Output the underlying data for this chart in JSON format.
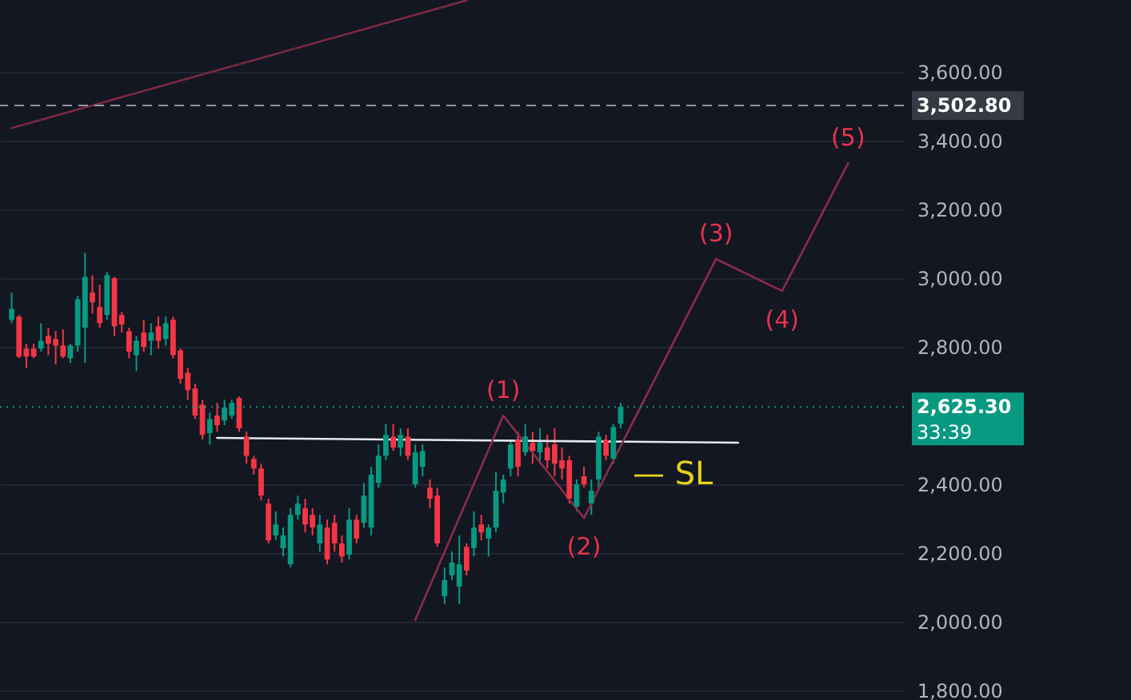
{
  "chart_data": {
    "type": "candlestick",
    "categories": [
      null,
      null,
      null,
      null,
      null,
      null,
      null,
      null,
      null,
      null,
      null,
      null,
      null,
      null,
      null,
      null,
      null,
      null,
      null,
      null,
      null,
      null,
      null,
      null,
      null,
      null,
      null,
      null,
      null,
      null,
      null,
      null,
      null,
      null,
      null,
      null,
      null,
      null,
      null,
      null,
      null,
      null,
      null,
      null,
      null,
      null,
      null,
      null,
      null,
      null,
      null,
      null,
      null,
      null,
      null,
      null,
      null,
      null,
      null,
      null,
      null,
      null,
      null,
      null,
      null,
      null,
      null,
      null,
      null,
      null,
      null,
      null,
      null,
      null,
      null,
      null,
      null,
      null,
      null,
      null,
      null,
      null,
      null,
      null,
      null,
      null,
      null,
      null,
      null,
      null,
      null,
      null,
      null,
      null,
      null,
      null,
      null,
      null,
      null,
      null,
      null,
      null,
      null,
      null,
      null,
      null,
      null,
      null,
      null,
      null,
      null,
      null,
      null,
      null,
      null,
      null,
      null,
      null,
      null,
      null,
      null
    ],
    "ohlc": [
      [
        2879,
        2958,
        2869,
        2911
      ],
      [
        2888,
        2893,
        2767,
        2772
      ],
      [
        2795,
        2809,
        2739,
        2772
      ],
      [
        2795,
        2809,
        2767,
        2772
      ],
      [
        2795,
        2869,
        2786,
        2818
      ],
      [
        2832,
        2856,
        2776,
        2809
      ],
      [
        2823,
        2846,
        2749,
        2804
      ],
      [
        2804,
        2851,
        2767,
        2772
      ],
      [
        2767,
        2809,
        2753,
        2804
      ],
      [
        2804,
        2949,
        2786,
        2939
      ],
      [
        2856,
        3074,
        2753,
        3004
      ],
      [
        2958,
        3009,
        2897,
        2930
      ],
      [
        2916,
        2981,
        2856,
        2869
      ],
      [
        2893,
        3018,
        2879,
        3009
      ],
      [
        3000,
        3004,
        2832,
        2860
      ],
      [
        2893,
        2902,
        2842,
        2865
      ],
      [
        2846,
        2856,
        2767,
        2786
      ],
      [
        2776,
        2832,
        2730,
        2818
      ],
      [
        2842,
        2879,
        2786,
        2800
      ],
      [
        2818,
        2869,
        2776,
        2842
      ],
      [
        2860,
        2888,
        2795,
        2818
      ],
      [
        2823,
        2888,
        2804,
        2869
      ],
      [
        2879,
        2888,
        2767,
        2776
      ],
      [
        2790,
        2795,
        2693,
        2707
      ],
      [
        2725,
        2739,
        2646,
        2674
      ],
      [
        2679,
        2693,
        2590,
        2600
      ],
      [
        2632,
        2646,
        2530,
        2544
      ],
      [
        2549,
        2609,
        2516,
        2590
      ],
      [
        2600,
        2637,
        2553,
        2572
      ],
      [
        2586,
        2646,
        2572,
        2623
      ],
      [
        2600,
        2646,
        2590,
        2637
      ],
      [
        2651,
        2656,
        2553,
        2563
      ],
      [
        2539,
        2553,
        2460,
        2483
      ],
      [
        2474,
        2483,
        2428,
        2446
      ],
      [
        2446,
        2460,
        2353,
        2367
      ],
      [
        2344,
        2358,
        2228,
        2237
      ],
      [
        2251,
        2321,
        2237,
        2283
      ],
      [
        2214,
        2274,
        2190,
        2251
      ],
      [
        2167,
        2330,
        2158,
        2311
      ],
      [
        2311,
        2367,
        2297,
        2344
      ],
      [
        2330,
        2358,
        2260,
        2283
      ],
      [
        2311,
        2330,
        2251,
        2274
      ],
      [
        2228,
        2311,
        2204,
        2283
      ],
      [
        2274,
        2297,
        2167,
        2181
      ],
      [
        2288,
        2311,
        2204,
        2228
      ],
      [
        2228,
        2251,
        2172,
        2190
      ],
      [
        2195,
        2330,
        2181,
        2297
      ],
      [
        2297,
        2311,
        2228,
        2242
      ],
      [
        2288,
        2404,
        2274,
        2367
      ],
      [
        2274,
        2451,
        2251,
        2428
      ],
      [
        2404,
        2516,
        2390,
        2483
      ],
      [
        2483,
        2576,
        2470,
        2544
      ],
      [
        2539,
        2576,
        2497,
        2507
      ],
      [
        2507,
        2563,
        2483,
        2544
      ],
      [
        2539,
        2563,
        2470,
        2483
      ],
      [
        2400,
        2516,
        2390,
        2493
      ],
      [
        2451,
        2516,
        2423,
        2497
      ],
      [
        2390,
        2414,
        2330,
        2358
      ],
      [
        2367,
        2390,
        2218,
        2228
      ],
      [
        2074,
        2158,
        2051,
        2121
      ],
      [
        2135,
        2204,
        2121,
        2172
      ],
      [
        2102,
        2251,
        2051,
        2167
      ],
      [
        2218,
        2228,
        2135,
        2149
      ],
      [
        2214,
        2321,
        2190,
        2274
      ],
      [
        2283,
        2311,
        2237,
        2260
      ],
      [
        2242,
        2283,
        2190,
        2274
      ],
      [
        2274,
        2437,
        2260,
        2381
      ],
      [
        2376,
        2428,
        2344,
        2414
      ],
      [
        2446,
        2530,
        2423,
        2516
      ],
      [
        2530,
        2553,
        2423,
        2451
      ],
      [
        2493,
        2576,
        2483,
        2539
      ],
      [
        2521,
        2553,
        2460,
        2497
      ],
      [
        2493,
        2563,
        2460,
        2521
      ],
      [
        2507,
        2544,
        2446,
        2470
      ],
      [
        2516,
        2563,
        2423,
        2460
      ],
      [
        2470,
        2507,
        2414,
        2446
      ],
      [
        2470,
        2483,
        2344,
        2358
      ],
      [
        2335,
        2414,
        2321,
        2400
      ],
      [
        2423,
        2451,
        2390,
        2400
      ],
      [
        2344,
        2414,
        2311,
        2381
      ],
      [
        2414,
        2553,
        2390,
        2539
      ],
      [
        2530,
        2544,
        2470,
        2483
      ],
      [
        2474,
        2576,
        2460,
        2567
      ],
      [
        2576,
        2637,
        2563,
        2625.3
      ],
      null,
      null,
      null,
      null,
      null,
      null,
      null,
      null,
      null,
      null,
      null,
      null,
      null,
      null,
      null,
      null,
      null,
      null,
      null,
      null,
      null,
      null,
      null,
      null,
      null,
      null,
      null,
      null,
      null,
      null,
      null,
      null,
      null,
      null,
      null,
      null,
      null
    ],
    "series": [
      {
        "type": "line",
        "color": "#7a2a40",
        "values": [
          3437,
          null,
          null,
          null,
          null,
          null,
          null,
          null,
          null,
          null,
          null,
          null,
          null,
          null,
          null,
          null,
          null,
          null,
          null,
          null,
          null,
          null,
          null,
          null,
          null,
          null,
          null,
          null,
          null,
          null,
          null,
          null,
          null,
          null,
          null,
          null,
          null,
          null,
          null,
          null,
          null,
          null,
          null,
          null,
          null,
          null,
          null,
          null,
          null,
          null,
          null,
          null,
          null,
          null,
          null,
          null,
          null,
          null,
          null,
          null,
          null,
          null,
          3809,
          null,
          null,
          null,
          null,
          null,
          null,
          null,
          null,
          null,
          null,
          null,
          null,
          null,
          null,
          null,
          null,
          null,
          null,
          null,
          null,
          null,
          null,
          null,
          null,
          null,
          null,
          null,
          null,
          null,
          null,
          null,
          null,
          null,
          null,
          null,
          null,
          null,
          null,
          null,
          null,
          null,
          null,
          null,
          null,
          null,
          null,
          null,
          null,
          null,
          null,
          null,
          null,
          null,
          null,
          null,
          null,
          null,
          null
        ]
      },
      {
        "type": "line",
        "color": "#e6e8ee",
        "values": [
          null,
          null,
          null,
          null,
          null,
          null,
          null,
          null,
          null,
          null,
          null,
          null,
          null,
          null,
          null,
          null,
          null,
          null,
          null,
          null,
          null,
          null,
          null,
          null,
          null,
          null,
          null,
          null,
          2535,
          null,
          null,
          null,
          null,
          null,
          null,
          null,
          null,
          null,
          null,
          null,
          null,
          null,
          null,
          null,
          null,
          null,
          null,
          null,
          null,
          null,
          null,
          null,
          null,
          null,
          null,
          null,
          null,
          null,
          null,
          null,
          null,
          null,
          null,
          null,
          null,
          null,
          null,
          null,
          null,
          null,
          null,
          null,
          null,
          null,
          null,
          null,
          null,
          null,
          null,
          null,
          null,
          null,
          null,
          null,
          null,
          null,
          null,
          null,
          null,
          null,
          null,
          null,
          null,
          null,
          null,
          null,
          null,
          null,
          null,
          2521,
          null,
          null,
          null,
          null,
          null,
          null,
          null,
          null,
          null,
          null,
          null,
          null,
          null,
          null,
          null,
          null,
          null,
          null,
          null,
          null,
          null
        ]
      },
      {
        "type": "line",
        "color": "#8c2c4a",
        "values": [
          null,
          null,
          null,
          null,
          null,
          null,
          null,
          null,
          null,
          null,
          null,
          null,
          null,
          null,
          null,
          null,
          null,
          null,
          null,
          null,
          null,
          null,
          null,
          null,
          null,
          null,
          null,
          null,
          null,
          null,
          null,
          null,
          null,
          null,
          null,
          null,
          null,
          null,
          null,
          null,
          null,
          null,
          null,
          null,
          null,
          null,
          null,
          null,
          null,
          null,
          null,
          null,
          null,
          null,
          null,
          2005,
          null,
          null,
          null,
          null,
          null,
          null,
          null,
          null,
          null,
          null,
          null,
          2600,
          null,
          null,
          null,
          null,
          null,
          null,
          null,
          null,
          null,
          null,
          2302,
          null,
          null,
          null,
          null,
          null,
          null,
          null,
          null,
          null,
          null,
          null,
          null,
          null,
          null,
          null,
          null,
          null,
          3056,
          null,
          null,
          null,
          null,
          null,
          null,
          null,
          null,
          2963,
          null,
          null,
          null,
          null,
          null,
          null,
          null,
          null,
          3335,
          null,
          null,
          null,
          null,
          null,
          null
        ]
      }
    ],
    "ylim": [
      1772,
      3810
    ],
    "yticks": [
      {
        "value": 1800,
        "label": "1,800.00"
      },
      {
        "value": 2000,
        "label": "2,000.00"
      },
      {
        "value": 2200,
        "label": "2,200.00"
      },
      {
        "value": 2400,
        "label": "2,400.00"
      },
      {
        "value": 2800,
        "label": "2,800.00"
      },
      {
        "value": 3000,
        "label": "3,000.00"
      },
      {
        "value": 3200,
        "label": "3,200.00"
      },
      {
        "value": 3400,
        "label": "3,400.00"
      },
      {
        "value": 3600,
        "label": "3,600.00"
      }
    ],
    "ref_lines": [
      {
        "axis": "y",
        "value": 3502.8,
        "label": "3,502.80",
        "color": "#9598a1",
        "line_style": "dashed"
      },
      {
        "axis": "y",
        "value": 2625.3,
        "label": "2,625.30",
        "color": "#089981",
        "line_style": "dotted"
      }
    ],
    "annotations": [
      "(1)",
      "(2)",
      "(3)",
      "(4)",
      "(5)",
      "— SL",
      "33:39"
    ],
    "grid": "y",
    "tick_labels": "y"
  }
}
